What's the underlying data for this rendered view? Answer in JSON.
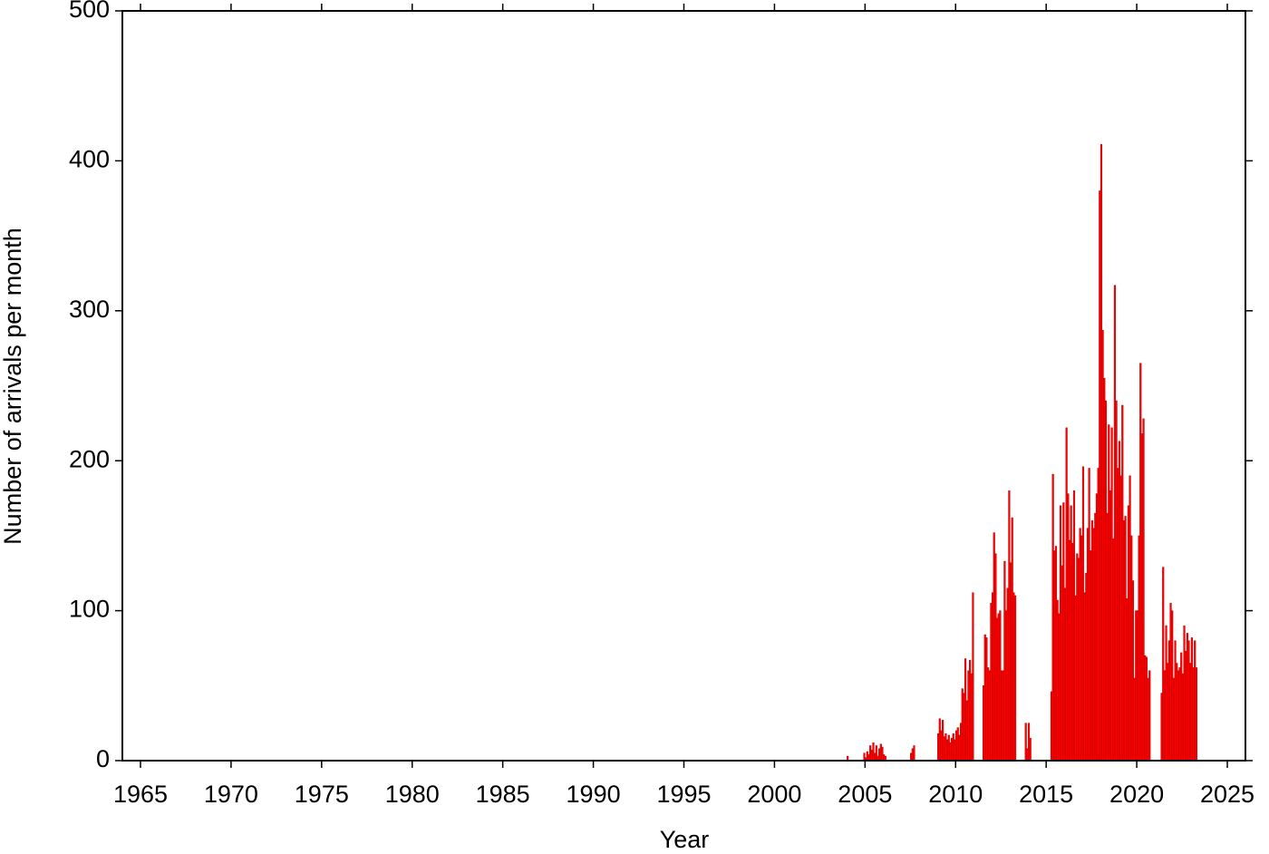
{
  "chart_data": {
    "type": "bar",
    "x_label": "Year",
    "y_label": "Number of arrivals per month",
    "color": "#ff0000",
    "xlim": [
      1964,
      2026
    ],
    "xticks": [
      1965,
      1970,
      1975,
      1980,
      1985,
      1990,
      1995,
      2000,
      2005,
      2010,
      2015,
      2020,
      2025
    ],
    "ylim": [
      0,
      500
    ],
    "yticks": [
      0,
      100,
      200,
      300,
      400,
      500
    ],
    "x": [
      2004.0,
      2004.917,
      2005.0,
      2005.083,
      2005.167,
      2005.25,
      2005.333,
      2005.417,
      2005.5,
      2005.583,
      2005.667,
      2005.75,
      2005.833,
      2005.917,
      2006.0,
      2006.083,
      2007.5,
      2007.583,
      2007.667,
      2009.0,
      2009.083,
      2009.167,
      2009.25,
      2009.333,
      2009.417,
      2009.5,
      2009.583,
      2009.667,
      2009.75,
      2009.833,
      2009.917,
      2010.0,
      2010.083,
      2010.167,
      2010.25,
      2010.333,
      2010.417,
      2010.5,
      2010.583,
      2010.667,
      2010.75,
      2010.833,
      2010.917,
      2011.5,
      2011.583,
      2011.667,
      2011.75,
      2011.833,
      2011.917,
      2012.0,
      2012.083,
      2012.167,
      2012.25,
      2012.333,
      2012.417,
      2012.5,
      2012.583,
      2012.667,
      2012.75,
      2012.833,
      2012.917,
      2013.0,
      2013.083,
      2013.167,
      2013.25,
      2013.833,
      2013.917,
      2014.0,
      2014.083,
      2015.25,
      2015.333,
      2015.417,
      2015.5,
      2015.583,
      2015.667,
      2015.75,
      2015.833,
      2015.917,
      2016.0,
      2016.083,
      2016.167,
      2016.25,
      2016.333,
      2016.417,
      2016.5,
      2016.583,
      2016.667,
      2016.75,
      2016.833,
      2016.917,
      2017.0,
      2017.083,
      2017.167,
      2017.25,
      2017.333,
      2017.417,
      2017.5,
      2017.583,
      2017.667,
      2017.75,
      2017.833,
      2017.917,
      2018.0,
      2018.083,
      2018.167,
      2018.25,
      2018.333,
      2018.417,
      2018.5,
      2018.583,
      2018.667,
      2018.75,
      2018.833,
      2018.917,
      2019.0,
      2019.083,
      2019.167,
      2019.25,
      2019.333,
      2019.417,
      2019.5,
      2019.583,
      2019.667,
      2019.75,
      2019.833,
      2019.917,
      2020.0,
      2020.083,
      2020.167,
      2020.25,
      2020.333,
      2020.417,
      2020.5,
      2020.583,
      2020.667,
      2021.333,
      2021.417,
      2021.5,
      2021.583,
      2021.667,
      2021.75,
      2021.833,
      2021.917,
      2022.0,
      2022.083,
      2022.167,
      2022.25,
      2022.333,
      2022.417,
      2022.5,
      2022.583,
      2022.667,
      2022.75,
      2022.833,
      2022.917,
      2023.0,
      2023.083,
      2023.167,
      2023.25
    ],
    "values": [
      3,
      5,
      2,
      6,
      4,
      10,
      7,
      12,
      5,
      10,
      3,
      8,
      11,
      9,
      4,
      3,
      5,
      8,
      10,
      18,
      28,
      20,
      27,
      16,
      18,
      14,
      17,
      12,
      15,
      18,
      14,
      20,
      22,
      17,
      25,
      48,
      45,
      68,
      40,
      60,
      67,
      58,
      112,
      50,
      84,
      82,
      62,
      60,
      105,
      112,
      152,
      138,
      95,
      98,
      100,
      60,
      60,
      133,
      100,
      115,
      180,
      132,
      162,
      112,
      110,
      25,
      8,
      25,
      15,
      46,
      191,
      140,
      143,
      107,
      98,
      170,
      130,
      172,
      115,
      222,
      178,
      147,
      170,
      145,
      180,
      110,
      138,
      135,
      155,
      150,
      196,
      112,
      125,
      155,
      195,
      140,
      160,
      155,
      165,
      178,
      195,
      380,
      411,
      287,
      255,
      240,
      165,
      224,
      180,
      222,
      148,
      317,
      240,
      195,
      213,
      190,
      237,
      160,
      163,
      108,
      170,
      190,
      150,
      120,
      55,
      100,
      100,
      150,
      265,
      218,
      228,
      70,
      69,
      55,
      60,
      45,
      129,
      60,
      90,
      65,
      80,
      105,
      100,
      55,
      80,
      65,
      60,
      62,
      72,
      58,
      90,
      73,
      85,
      80,
      65,
      82,
      62,
      80,
      62
    ]
  }
}
